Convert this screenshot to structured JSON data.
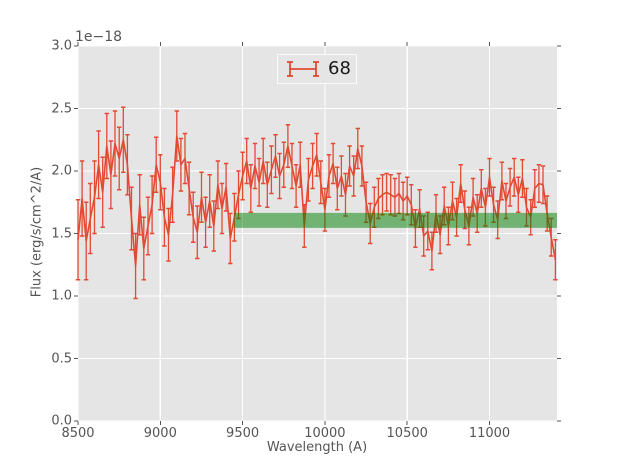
{
  "figure": {
    "offset_text": "1e−18",
    "xlabel": "Wavelength (A)",
    "ylabel": "Flux (erg/s/cm^2/A)",
    "legend": {
      "label": "68"
    }
  },
  "colors": {
    "figure_bg": "#ffffff",
    "plot_bg": "#e5e5e5",
    "grid": "#ffffff",
    "series": "#e24a33",
    "band_green": "#008000",
    "band_alpha": 0.5,
    "tick": "#555555",
    "text": "#555555",
    "legend_text": "#1a1a1a",
    "legend_border": "#fbfbfb"
  },
  "chart_data": {
    "type": "line",
    "subtype": "errorbar",
    "title": "",
    "xlabel": "Wavelength (A)",
    "ylabel": "Flux (erg/s/cm^2/A)",
    "offset_text": "1e−18",
    "xlim": [
      8500,
      11410
    ],
    "ylim": [
      0.0,
      3.0
    ],
    "xticks": [
      8500,
      9000,
      9500,
      10000,
      10500,
      11000
    ],
    "xtick_labels": [
      "8500",
      "9000",
      "9500",
      "10000",
      "10500",
      "11000"
    ],
    "yticks": [
      0.0,
      0.5,
      1.0,
      1.5,
      2.0,
      2.5,
      3.0
    ],
    "ytick_labels": [
      "0.0",
      "0.5",
      "1.0",
      "1.5",
      "2.0",
      "2.5",
      "3.0"
    ],
    "grid": true,
    "legend": {
      "entries": [
        "68"
      ],
      "position": "upper center"
    },
    "band": {
      "x0": 9450,
      "x1": 11410,
      "y0": 1.545,
      "y1": 1.665
    },
    "series": [
      {
        "name": "68",
        "x": [
          8500,
          8525,
          8550,
          8575,
          8600,
          8625,
          8650,
          8675,
          8700,
          8725,
          8750,
          8775,
          8800,
          8825,
          8850,
          8875,
          8900,
          8925,
          8950,
          8975,
          9000,
          9025,
          9050,
          9075,
          9100,
          9125,
          9150,
          9175,
          9200,
          9225,
          9250,
          9275,
          9300,
          9325,
          9350,
          9375,
          9400,
          9425,
          9450,
          9475,
          9500,
          9525,
          9550,
          9575,
          9600,
          9625,
          9650,
          9675,
          9700,
          9725,
          9750,
          9775,
          9800,
          9825,
          9850,
          9875,
          9900,
          9925,
          9950,
          9975,
          10000,
          10025,
          10050,
          10075,
          10100,
          10125,
          10150,
          10175,
          10200,
          10225,
          10250,
          10275,
          10300,
          10325,
          10350,
          10375,
          10400,
          10425,
          10450,
          10475,
          10500,
          10525,
          10550,
          10575,
          10600,
          10625,
          10650,
          10675,
          10700,
          10725,
          10750,
          10775,
          10800,
          10825,
          10850,
          10875,
          10900,
          10925,
          10950,
          10975,
          11000,
          11025,
          11050,
          11075,
          11100,
          11125,
          11150,
          11175,
          11200,
          11225,
          11250,
          11275,
          11300,
          11325,
          11350,
          11375,
          11400
        ],
        "y": [
          1.45,
          1.78,
          1.44,
          1.62,
          1.79,
          2.05,
          1.83,
          2.2,
          1.97,
          2.22,
          2.1,
          2.25,
          2.05,
          1.62,
          1.24,
          1.73,
          1.38,
          1.56,
          1.73,
          2.05,
          1.91,
          1.63,
          1.49,
          1.81,
          2.28,
          2.05,
          2.1,
          1.86,
          1.63,
          1.51,
          1.79,
          1.59,
          1.76,
          1.56,
          1.89,
          1.7,
          1.87,
          1.46,
          1.63,
          1.81,
          1.96,
          2.08,
          1.86,
          2.04,
          1.91,
          2.08,
          1.89,
          2.01,
          2.12,
          1.96,
          2.05,
          2.2,
          2.04,
          1.88,
          2.05,
          1.56,
          1.93,
          2.04,
          2.13,
          1.91,
          1.69,
          1.96,
          2.06,
          1.86,
          1.96,
          1.81,
          2.04,
          1.96,
          2.18,
          2.04,
          1.75,
          1.58,
          1.71,
          1.78,
          1.81,
          1.83,
          1.81,
          1.79,
          1.82,
          1.76,
          1.8,
          1.73,
          1.54,
          1.7,
          1.48,
          1.52,
          1.36,
          1.66,
          1.49,
          1.72,
          1.56,
          1.76,
          1.63,
          1.9,
          1.69,
          1.56,
          1.79,
          1.66,
          1.86,
          1.71,
          1.95,
          1.73,
          1.61,
          1.92,
          1.76,
          1.87,
          1.95,
          1.81,
          1.94,
          1.71,
          1.63,
          1.86,
          1.9,
          1.89,
          1.66,
          1.47,
          1.29
        ],
        "yerr": [
          0.32,
          0.3,
          0.31,
          0.28,
          0.29,
          0.27,
          0.28,
          0.26,
          0.27,
          0.26,
          0.25,
          0.26,
          0.24,
          0.25,
          0.26,
          0.24,
          0.25,
          0.23,
          0.23,
          0.22,
          0.22,
          0.23,
          0.21,
          0.22,
          0.2,
          0.21,
          0.2,
          0.21,
          0.2,
          0.21,
          0.2,
          0.2,
          0.21,
          0.2,
          0.19,
          0.2,
          0.19,
          0.2,
          0.19,
          0.19,
          0.19,
          0.18,
          0.19,
          0.18,
          0.19,
          0.18,
          0.18,
          0.19,
          0.17,
          0.18,
          0.18,
          0.17,
          0.18,
          0.17,
          0.18,
          0.17,
          0.17,
          0.18,
          0.17,
          0.17,
          0.17,
          0.17,
          0.16,
          0.17,
          0.16,
          0.17,
          0.16,
          0.16,
          0.16,
          0.16,
          0.16,
          0.16,
          0.16,
          0.16,
          0.16,
          0.15,
          0.16,
          0.15,
          0.16,
          0.15,
          0.15,
          0.16,
          0.15,
          0.15,
          0.16,
          0.15,
          0.15,
          0.15,
          0.15,
          0.15,
          0.15,
          0.15,
          0.15,
          0.15,
          0.15,
          0.15,
          0.15,
          0.15,
          0.15,
          0.15,
          0.15,
          0.14,
          0.15,
          0.15,
          0.14,
          0.15,
          0.15,
          0.14,
          0.15,
          0.15,
          0.14,
          0.15,
          0.15,
          0.15,
          0.14,
          0.15,
          0.16
        ]
      }
    ]
  }
}
